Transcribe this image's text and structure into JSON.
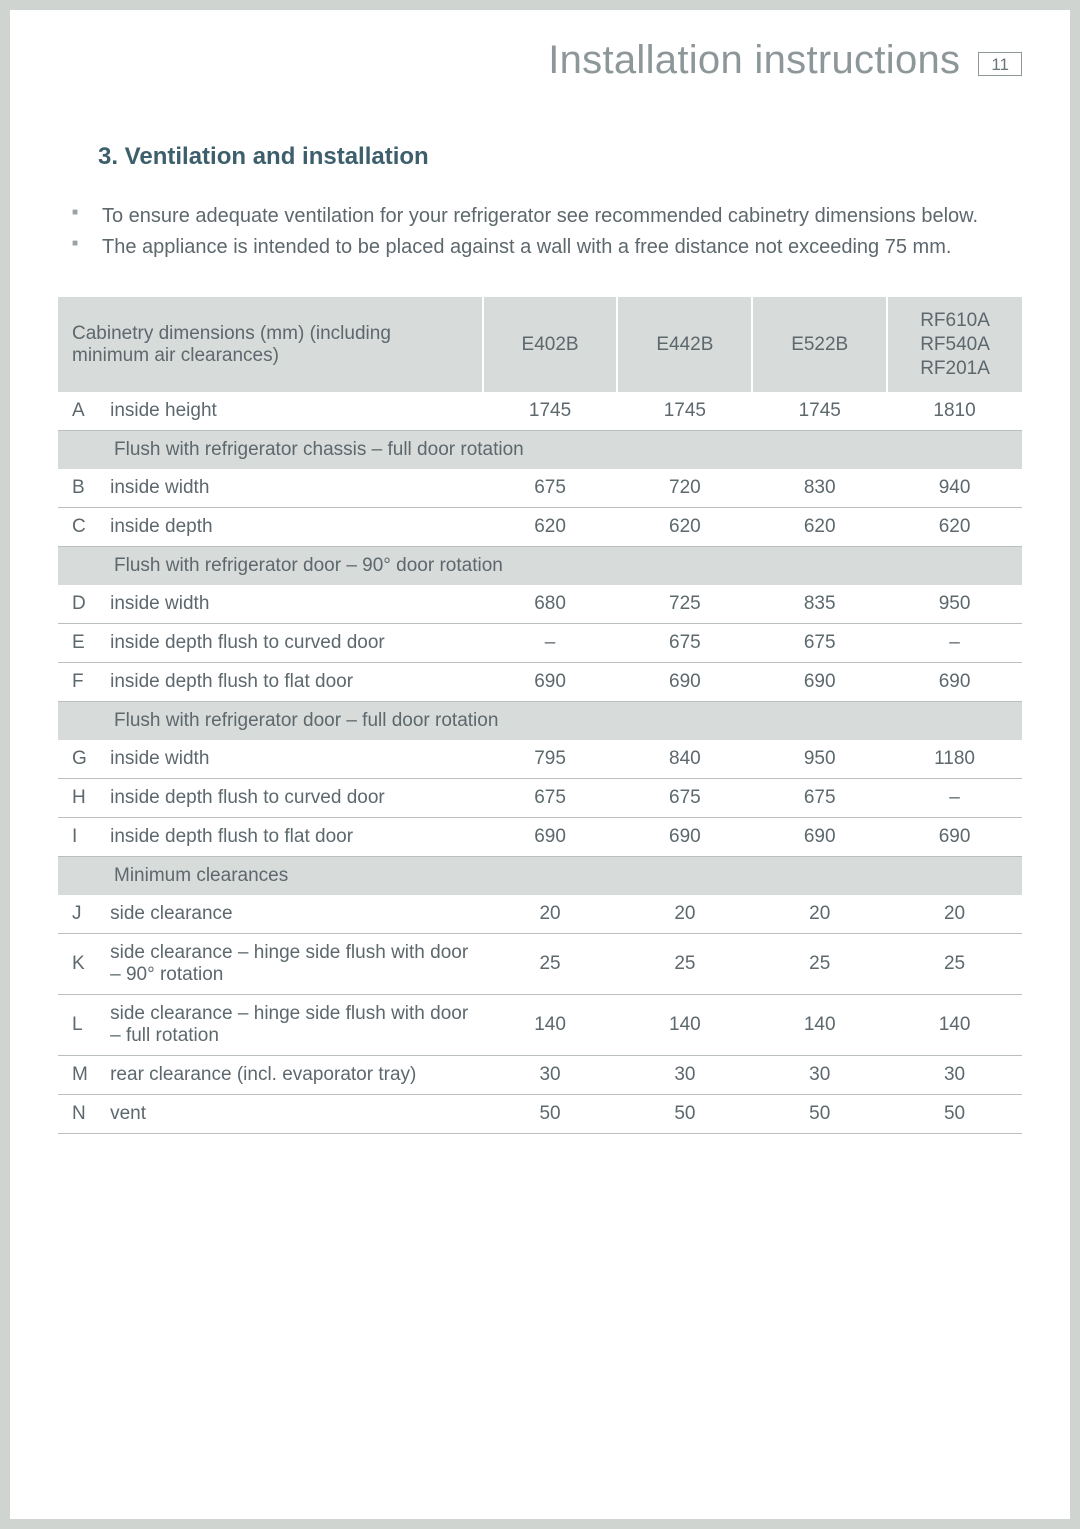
{
  "header": {
    "title": "Installation instructions",
    "page_number": "11"
  },
  "section": {
    "heading": "3. Ventilation and installation",
    "notes": [
      "To ensure adequate ventilation for your refrigerator see recommended cabinetry dimensions below.",
      "The appliance is intended to be placed against a wall with a free distance not exceeding 75 mm."
    ]
  },
  "table": {
    "header": {
      "desc": "Cabinetry dimensions (mm) (including minimum air clearances)",
      "cols": [
        "E402B",
        "E442B",
        "E522B",
        "RF610A\nRF540A\nRF201A"
      ]
    },
    "rows": [
      {
        "type": "data",
        "letter": "A",
        "desc": "inside height",
        "vals": [
          "1745",
          "1745",
          "1745",
          "1810"
        ]
      },
      {
        "type": "section",
        "label": "Flush with refrigerator chassis – full door rotation"
      },
      {
        "type": "data",
        "letter": "B",
        "desc": "inside width",
        "vals": [
          "675",
          "720",
          "830",
          "940"
        ]
      },
      {
        "type": "data",
        "letter": "C",
        "desc": "inside depth",
        "vals": [
          "620",
          "620",
          "620",
          "620"
        ]
      },
      {
        "type": "section",
        "label": "Flush with refrigerator door – 90° door rotation"
      },
      {
        "type": "data",
        "letter": "D",
        "desc": "inside width",
        "vals": [
          "680",
          "725",
          "835",
          "950"
        ]
      },
      {
        "type": "data",
        "letter": "E",
        "desc": "inside depth flush to curved door",
        "vals": [
          "–",
          "675",
          "675",
          "–"
        ]
      },
      {
        "type": "data",
        "letter": "F",
        "desc": "inside depth flush to flat door",
        "vals": [
          "690",
          "690",
          "690",
          "690"
        ]
      },
      {
        "type": "section",
        "label": "Flush with refrigerator door – full door rotation"
      },
      {
        "type": "data",
        "letter": "G",
        "desc": "inside width",
        "vals": [
          "795",
          "840",
          "950",
          "1180"
        ]
      },
      {
        "type": "data",
        "letter": "H",
        "desc": "inside depth flush to curved door",
        "vals": [
          "675",
          "675",
          "675",
          "–"
        ]
      },
      {
        "type": "data",
        "letter": "I",
        "desc": "inside depth flush to flat door",
        "vals": [
          "690",
          "690",
          "690",
          "690"
        ]
      },
      {
        "type": "section",
        "label": "Minimum clearances"
      },
      {
        "type": "data",
        "letter": "J",
        "desc": "side clearance",
        "vals": [
          "20",
          "20",
          "20",
          "20"
        ]
      },
      {
        "type": "data",
        "letter": "K",
        "desc": "side clearance – hinge side flush with door – 90° rotation",
        "vals": [
          "25",
          "25",
          "25",
          "25"
        ]
      },
      {
        "type": "data",
        "letter": "L",
        "desc": "side clearance – hinge side flush with door – full rotation",
        "vals": [
          "140",
          "140",
          "140",
          "140"
        ]
      },
      {
        "type": "data",
        "letter": "M",
        "desc": "rear clearance (incl. evaporator tray)",
        "vals": [
          "30",
          "30",
          "30",
          "30"
        ]
      },
      {
        "type": "data",
        "letter": "N",
        "desc": "vent",
        "vals": [
          "50",
          "50",
          "50",
          "50"
        ]
      }
    ]
  },
  "colors": {
    "page_bg": "#ffffff",
    "outer_bg": "#d0d4d0",
    "header_text": "#8d979a",
    "heading_text": "#3d5f6b",
    "body_text": "#5d686d",
    "table_header_bg": "#d7dbd9",
    "row_border": "#b9c0bd"
  }
}
